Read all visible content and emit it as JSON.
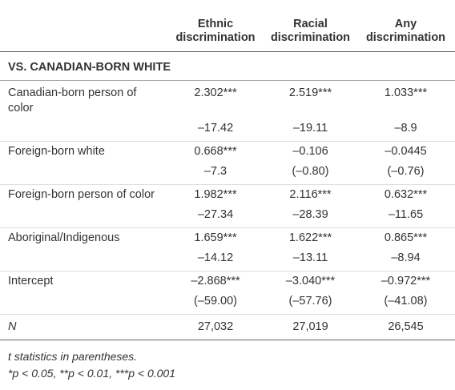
{
  "table": {
    "columns": [
      "Ethnic discrimination",
      "Racial discrimination",
      "Any discrimination"
    ],
    "section": "VS. CANADIAN-BORN WHITE",
    "rows": [
      {
        "label": "Canadian-born person of color",
        "values": [
          "2.302***",
          "2.519***",
          "1.033***"
        ]
      },
      {
        "label": null,
        "values": [
          "–17.42",
          "–19.11",
          "–8.9"
        ]
      },
      {
        "label": "Foreign-born white",
        "values": [
          "0.668***",
          "–0.106",
          "–0.0445"
        ]
      },
      {
        "label": null,
        "values": [
          "–7.3",
          "(–0.80)",
          "(–0.76)"
        ]
      },
      {
        "label": "Foreign-born person of color",
        "values": [
          "1.982***",
          "2.116***",
          "0.632***"
        ]
      },
      {
        "label": null,
        "values": [
          "–27.34",
          "–28.39",
          "–11.65"
        ]
      },
      {
        "label": "Aboriginal/Indigenous",
        "values": [
          "1.659***",
          "1.622***",
          "0.865***"
        ]
      },
      {
        "label": null,
        "values": [
          "–14.12",
          "–13.11",
          "–8.94"
        ]
      },
      {
        "label": "Intercept",
        "values": [
          "–2.868***",
          "–3.040***",
          "–0.972***"
        ]
      },
      {
        "label": null,
        "values": [
          "(–59.00)",
          "(–57.76)",
          "(–41.08)"
        ]
      }
    ],
    "n_row": {
      "label": "N",
      "values": [
        "27,032",
        "27,019",
        "26,545"
      ]
    },
    "notes": [
      "t statistics in parentheses.",
      "*p < 0.05, **p < 0.01, ***p < 0.001"
    ]
  }
}
